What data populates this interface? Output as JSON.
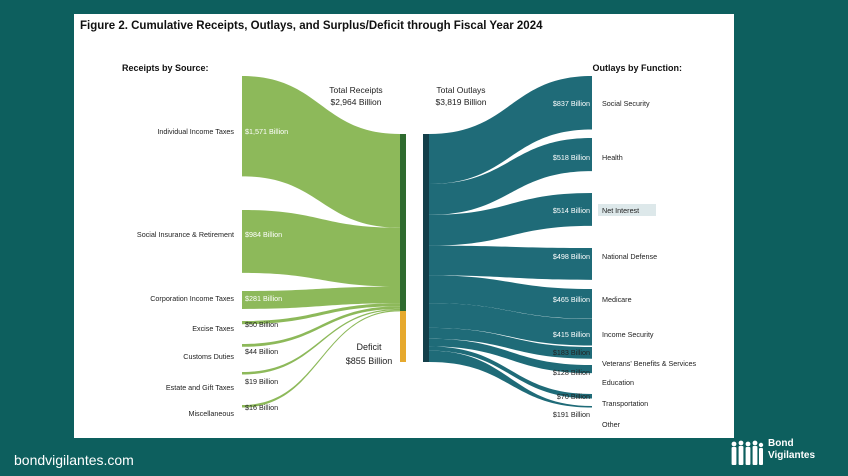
{
  "title": "Figure 2. Cumulative Receipts, Outlays, and Surplus/Deficit through Fiscal Year 2024",
  "receipts_header": "Receipts by Source:",
  "outlays_header": "Outlays by Function:",
  "total_receipts_label": "Total Receipts",
  "total_receipts_value": "$2,964 Billion",
  "total_outlays_label": "Total Outlays",
  "total_outlays_value": "$3,819 Billion",
  "deficit_label": "Deficit",
  "deficit_value": "$855 Billion",
  "receipts": [
    {
      "name": "Individual Income Taxes",
      "label": "$1,571 Billion",
      "value": 1571
    },
    {
      "name": "Social Insurance & Retirement",
      "label": "$984 Billion",
      "value": 984
    },
    {
      "name": "Corporation Income Taxes",
      "label": "$281 Billion",
      "value": 281
    },
    {
      "name": "Excise Taxes",
      "label": "$50 Billion",
      "value": 50
    },
    {
      "name": "Customs Duties",
      "label": "$44 Billion",
      "value": 44
    },
    {
      "name": "Estate and Gift Taxes",
      "label": "$19 Billion",
      "value": 19
    },
    {
      "name": "Miscellaneous",
      "label": "$16 Billion",
      "value": 16
    }
  ],
  "outlays": [
    {
      "name": "Social Security",
      "label": "$837 Billion",
      "value": 837
    },
    {
      "name": "Health",
      "label": "$518 Billion",
      "value": 518
    },
    {
      "name": "Net Interest",
      "label": "$514 Billion",
      "value": 514,
      "highlight": true
    },
    {
      "name": "National Defense",
      "label": "$498 Billion",
      "value": 498
    },
    {
      "name": "Medicare",
      "label": "$465 Billion",
      "value": 465
    },
    {
      "name": "Income Security",
      "label": "$415 Billion",
      "value": 415
    },
    {
      "name": "Veterans' Benefits & Services",
      "label": "$183 Billion",
      "value": 183
    },
    {
      "name": "Education",
      "label": "$128 Billion",
      "value": 128
    },
    {
      "name": "Transportation",
      "label": "$70 Billion",
      "value": 70
    },
    {
      "name": "Other",
      "label": "$191 Billion",
      "value": 191
    }
  ],
  "colors": {
    "receipts": "#8db95a",
    "receipts_bar": "#2f6b2f",
    "outlays": "#1f6b78",
    "outlays_bar": "#133f4a",
    "deficit": "#e6a92e",
    "highlight": "#dde8ea",
    "background": "#0d5f5e"
  },
  "footer": {
    "url": "bondvigilantes.com",
    "logo_line1": "Bond",
    "logo_line2": "Vigilantes"
  }
}
